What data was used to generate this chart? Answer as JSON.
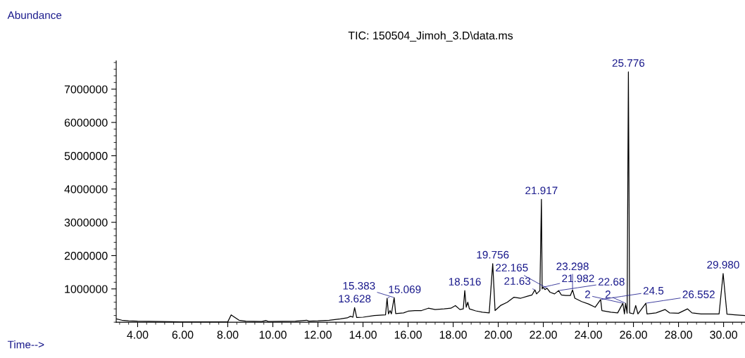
{
  "chart_data": {
    "type": "line",
    "title": "TIC: 150504_Jimoh_3.D\\data.ms",
    "xlabel": "Time-->",
    "ylabel": "Abundance",
    "xlim": [
      3.05,
      30.95
    ],
    "ylim": [
      0,
      7850000
    ],
    "xticks": [
      {
        "value": 4,
        "label": "4.00"
      },
      {
        "value": 6,
        "label": "6.00"
      },
      {
        "value": 8,
        "label": "8.00"
      },
      {
        "value": 10,
        "label": "10.00"
      },
      {
        "value": 12,
        "label": "12.00"
      },
      {
        "value": 14,
        "label": "14.00"
      },
      {
        "value": 16,
        "label": "16.00"
      },
      {
        "value": 18,
        "label": "18.00"
      },
      {
        "value": 20,
        "label": "20.00"
      },
      {
        "value": 22,
        "label": "22.00"
      },
      {
        "value": 24,
        "label": "24.00"
      },
      {
        "value": 26,
        "label": "26.00"
      },
      {
        "value": 28,
        "label": "28.00"
      },
      {
        "value": 30,
        "label": "30.00"
      }
    ],
    "yticks": [
      1000000,
      2000000,
      3000000,
      4000000,
      5000000,
      6000000,
      7000000
    ],
    "grid": false,
    "legend": false,
    "marker": "none",
    "line_style": "solid",
    "series": [
      {
        "color": "#000000",
        "x": [
          3.05,
          3.3,
          3.6,
          4.0,
          5.0,
          6.0,
          7.0,
          8.0,
          8.15,
          8.3,
          8.5,
          8.8,
          9.5,
          9.7,
          9.8,
          11.0,
          11.5,
          11.6,
          12.0,
          12.5,
          13.0,
          13.3,
          13.45,
          13.55,
          13.628,
          13.72,
          14.0,
          14.5,
          15.0,
          15.069,
          15.13,
          15.2,
          15.26,
          15.383,
          15.45,
          15.8,
          16.0,
          16.3,
          16.6,
          16.9,
          17.2,
          17.6,
          17.9,
          18.1,
          18.3,
          18.45,
          18.516,
          18.58,
          18.65,
          18.72,
          19.0,
          19.3,
          19.6,
          19.756,
          19.86,
          20.1,
          20.4,
          20.7,
          21.0,
          21.3,
          21.5,
          21.63,
          21.7,
          21.85,
          21.917,
          21.95,
          21.982,
          22.08,
          22.165,
          22.3,
          22.5,
          22.68,
          22.8,
          23.0,
          23.2,
          23.298,
          23.4,
          23.7,
          24.0,
          24.3,
          24.544,
          24.6,
          25.0,
          25.3,
          25.53,
          25.6,
          25.65,
          25.72,
          25.776,
          25.83,
          26.0,
          26.1,
          26.2,
          26.552,
          26.6,
          27.0,
          27.4,
          27.6,
          28.0,
          28.4,
          28.6,
          29.0,
          29.8,
          29.98,
          30.15,
          30.5,
          30.95
        ],
        "values": [
          100000,
          60000,
          40000,
          30000,
          20000,
          10000,
          10000,
          10000,
          220000,
          150000,
          60000,
          30000,
          20000,
          50000,
          20000,
          30000,
          60000,
          30000,
          40000,
          60000,
          100000,
          130000,
          180000,
          150000,
          440000,
          140000,
          150000,
          200000,
          220000,
          720000,
          250000,
          350000,
          250000,
          740000,
          260000,
          280000,
          330000,
          350000,
          350000,
          420000,
          380000,
          400000,
          420000,
          500000,
          380000,
          400000,
          950000,
          450000,
          600000,
          400000,
          340000,
          300000,
          280000,
          1760000,
          350000,
          500000,
          600000,
          750000,
          720000,
          780000,
          820000,
          970000,
          850000,
          950000,
          3690000,
          1000000,
          1050000,
          980000,
          1020000,
          900000,
          850000,
          950000,
          820000,
          800000,
          800000,
          970000,
          720000,
          620000,
          550000,
          450000,
          680000,
          350000,
          300000,
          280000,
          570000,
          250000,
          570000,
          270000,
          7520000,
          280000,
          250000,
          500000,
          250000,
          570000,
          250000,
          280000,
          380000,
          280000,
          270000,
          400000,
          280000,
          250000,
          250000,
          1460000,
          240000,
          220000,
          200000
        ]
      }
    ],
    "annotations": [
      {
        "text": "13.628",
        "x": 13.628,
        "y": 440000
      },
      {
        "text": "15.069",
        "x": 15.069,
        "y": 720000
      },
      {
        "text": "15.383",
        "x": 15.383,
        "y": 740000
      },
      {
        "text": "18.516",
        "x": 18.516,
        "y": 950000
      },
      {
        "text": "19.756",
        "x": 19.756,
        "y": 1760000
      },
      {
        "text": "21.63",
        "x": 21.63,
        "y": 970000
      },
      {
        "text": "21.917",
        "x": 21.917,
        "y": 3690000
      },
      {
        "text": "21.982",
        "x": 21.982,
        "y": 1050000
      },
      {
        "text": "22.165",
        "x": 22.165,
        "y": 1020000
      },
      {
        "text": "22.68",
        "x": 22.68,
        "y": 950000
      },
      {
        "text": "23.298",
        "x": 23.298,
        "y": 970000
      },
      {
        "text": "24.5",
        "x": 24.544,
        "y": 680000
      },
      {
        "text": "2",
        "x": 25.53,
        "y": 570000
      },
      {
        "text": "2",
        "x": 25.65,
        "y": 570000
      },
      {
        "text": "25.776",
        "x": 25.776,
        "y": 7520000
      },
      {
        "text": "26.552",
        "x": 26.552,
        "y": 570000
      },
      {
        "text": "29.980",
        "x": 29.98,
        "y": 1460000
      }
    ]
  }
}
